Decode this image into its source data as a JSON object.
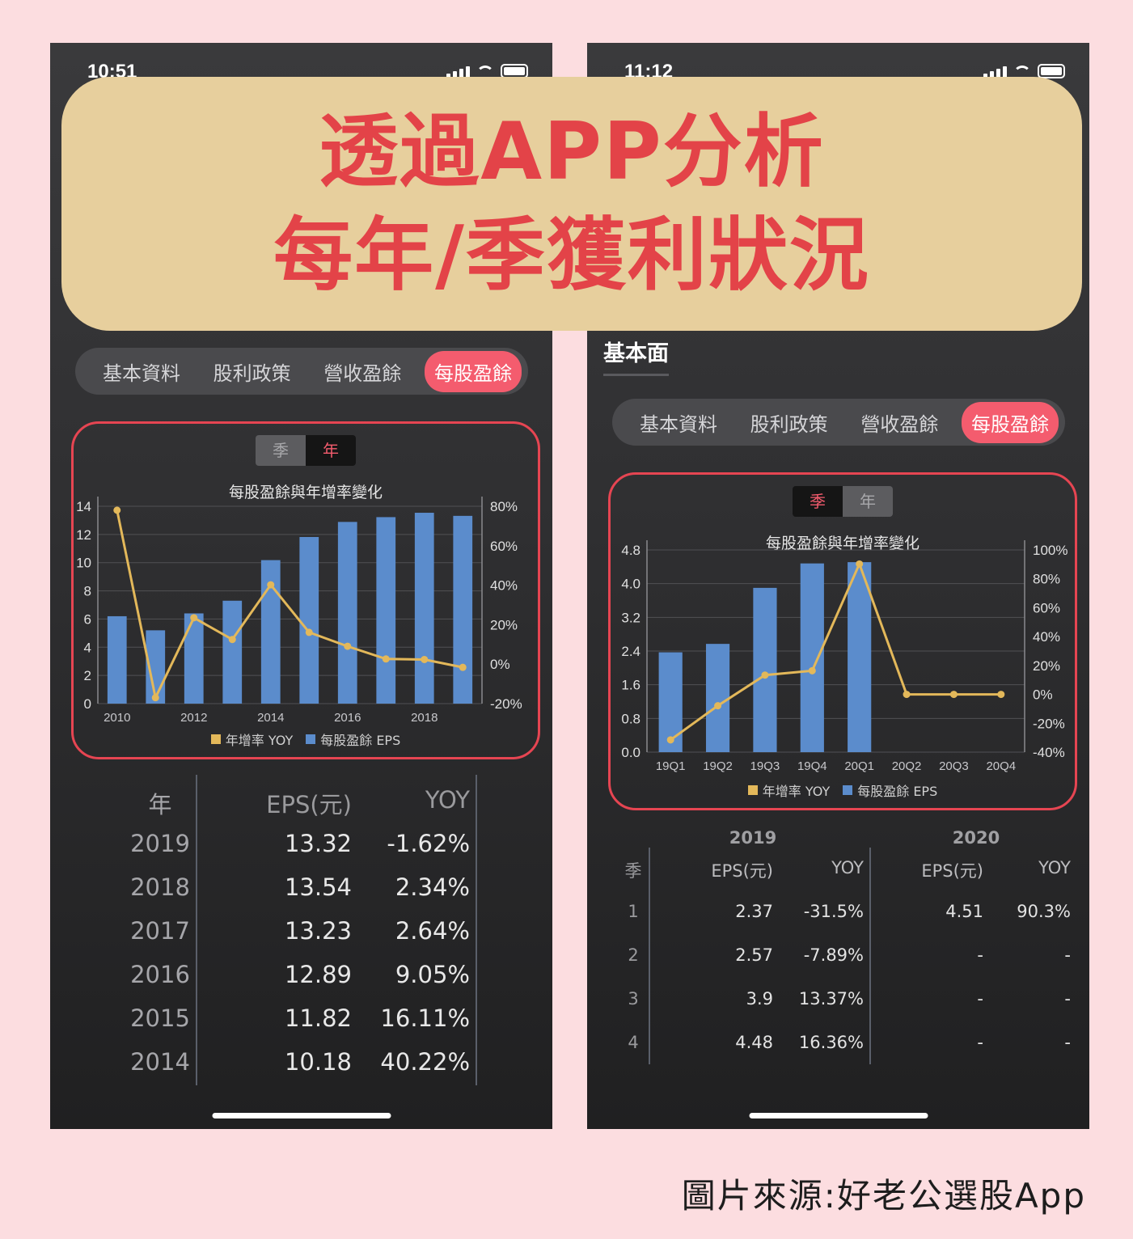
{
  "banner": {
    "line1": "透過APP分析",
    "line2": "每年/季獲利狀況"
  },
  "source": "圖片來源:好老公選股App",
  "left": {
    "time": "10:51",
    "tabs": [
      "基本資料",
      "股利政策",
      "營收盈餘",
      "每股盈餘"
    ],
    "active_tab": 3,
    "toggle": {
      "season": "季",
      "year": "年",
      "selected": "年"
    },
    "legend": {
      "yoy": "年增率 YOY",
      "eps": "每股盈餘 EPS"
    },
    "table": {
      "headers": {
        "year": "年",
        "eps": "EPS(元)",
        "yoy": "YOY"
      },
      "rows": [
        {
          "year": "2019",
          "eps": "13.32",
          "yoy": "-1.62%"
        },
        {
          "year": "2018",
          "eps": "13.54",
          "yoy": "2.34%"
        },
        {
          "year": "2017",
          "eps": "13.23",
          "yoy": "2.64%"
        },
        {
          "year": "2016",
          "eps": "12.89",
          "yoy": "9.05%"
        },
        {
          "year": "2015",
          "eps": "11.82",
          "yoy": "16.11%"
        },
        {
          "year": "2014",
          "eps": "10.18",
          "yoy": "40.22%"
        }
      ]
    }
  },
  "right": {
    "time": "11:12",
    "section_title": "基本面",
    "tabs": [
      "基本資料",
      "股利政策",
      "營收盈餘",
      "每股盈餘"
    ],
    "active_tab": 3,
    "toggle": {
      "season": "季",
      "year": "年",
      "selected": "季"
    },
    "legend": {
      "yoy": "年增率 YOY",
      "eps": "每股盈餘 EPS"
    },
    "table": {
      "year_groups": [
        "2019",
        "2020"
      ],
      "headers": {
        "quarter": "季",
        "eps": "EPS(元)",
        "yoy": "YOY"
      },
      "rows": [
        {
          "q": "1",
          "eps2019": "2.37",
          "yoy2019": "-31.5%",
          "eps2020": "4.51",
          "yoy2020": "90.3%"
        },
        {
          "q": "2",
          "eps2019": "2.57",
          "yoy2019": "-7.89%",
          "eps2020": "-",
          "yoy2020": "-"
        },
        {
          "q": "3",
          "eps2019": "3.9",
          "yoy2019": "13.37%",
          "eps2020": "-",
          "yoy2020": "-"
        },
        {
          "q": "4",
          "eps2019": "4.48",
          "yoy2019": "16.36%",
          "eps2020": "-",
          "yoy2020": "-"
        }
      ]
    }
  },
  "chart_data": [
    {
      "type": "bar",
      "title": "每股盈餘與年增率變化",
      "categories": [
        "2010",
        "2011",
        "2012",
        "2013",
        "2014",
        "2015",
        "2016",
        "2017",
        "2018",
        "2019"
      ],
      "x_tick_labels": [
        "2010",
        "2012",
        "2014",
        "2016",
        "2018"
      ],
      "series": [
        {
          "name": "每股盈餘 EPS",
          "type": "bar",
          "axis": "left",
          "color": "#5b8ccc",
          "values": [
            6.2,
            5.2,
            6.4,
            7.3,
            10.18,
            11.82,
            12.89,
            13.23,
            13.54,
            13.32
          ]
        },
        {
          "name": "年增率 YOY",
          "type": "line",
          "axis": "right",
          "color": "#e3b85a",
          "values": [
            78.0,
            -17.0,
            23.5,
            12.5,
            40.22,
            16.11,
            9.05,
            2.64,
            2.34,
            -1.62
          ]
        }
      ],
      "ylim_left": [
        0,
        14
      ],
      "yticks_left": [
        "0",
        "2",
        "4",
        "6",
        "8",
        "10",
        "12",
        "14"
      ],
      "ylim_right": [
        -20,
        80
      ],
      "yticks_right": [
        "-20%",
        "0%",
        "20%",
        "40%",
        "60%",
        "80%"
      ],
      "legend": "bottom"
    },
    {
      "type": "bar",
      "title": "每股盈餘與年增率變化",
      "categories": [
        "19Q1",
        "19Q2",
        "19Q3",
        "19Q4",
        "20Q1",
        "20Q2",
        "20Q3",
        "20Q4"
      ],
      "series": [
        {
          "name": "每股盈餘 EPS",
          "type": "bar",
          "axis": "left",
          "color": "#5b8ccc",
          "values": [
            2.37,
            2.57,
            3.9,
            4.48,
            4.51,
            0,
            0,
            0
          ]
        },
        {
          "name": "年增率 YOY",
          "type": "line",
          "axis": "right",
          "color": "#e3b85a",
          "values": [
            -31.5,
            -7.89,
            13.37,
            16.36,
            90.3,
            0,
            0,
            0
          ]
        }
      ],
      "ylim_left": [
        0,
        4.8
      ],
      "yticks_left": [
        "0.0",
        "0.8",
        "1.6",
        "2.4",
        "3.2",
        "4.0",
        "4.8"
      ],
      "ylim_right": [
        -40,
        100
      ],
      "yticks_right": [
        "-40%",
        "-20%",
        "0%",
        "20%",
        "40%",
        "60%",
        "80%",
        "100%"
      ],
      "legend": "bottom"
    }
  ]
}
